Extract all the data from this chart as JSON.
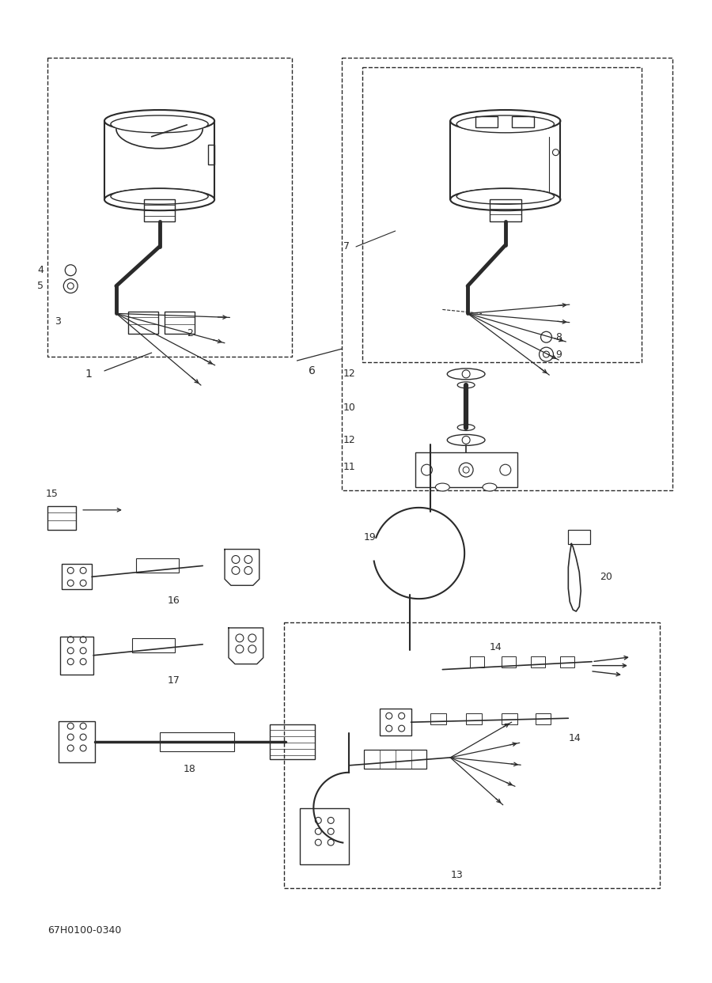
{
  "bg_color": "#ffffff",
  "line_color": "#2a2a2a",
  "footer_text": "67H0100-0340",
  "fig_width": 9.0,
  "fig_height": 12.43,
  "dpi": 100
}
